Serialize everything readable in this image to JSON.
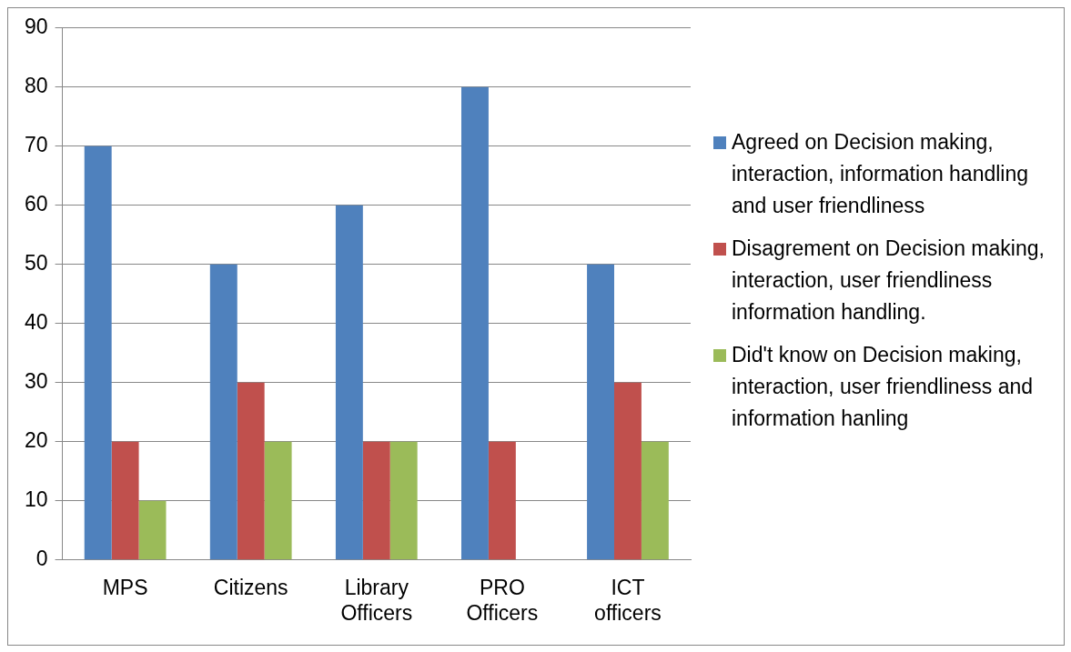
{
  "chart_data": {
    "type": "bar",
    "categories": [
      "MPS",
      "Citizens",
      "Library Officers",
      "PRO Officers",
      "ICT officers"
    ],
    "series": [
      {
        "name": "Agreed on Decision making, interaction, information handling and user friendliness",
        "color": "#4f81bd",
        "values": [
          70,
          50,
          60,
          80,
          50
        ]
      },
      {
        "name": "Disagrement on Decision making, interaction, user friendliness information handling.",
        "color": "#c0504d",
        "values": [
          20,
          30,
          20,
          20,
          30
        ]
      },
      {
        "name": "Did't know on Decision making, interaction, user friendliness and information hanling",
        "color": "#9bbb59",
        "values": [
          10,
          20,
          20,
          0,
          20
        ]
      }
    ],
    "ylim": [
      0,
      90
    ],
    "yticks": [
      0,
      10,
      20,
      30,
      40,
      50,
      60,
      70,
      80,
      90
    ],
    "grid": "y",
    "legend": "right"
  }
}
